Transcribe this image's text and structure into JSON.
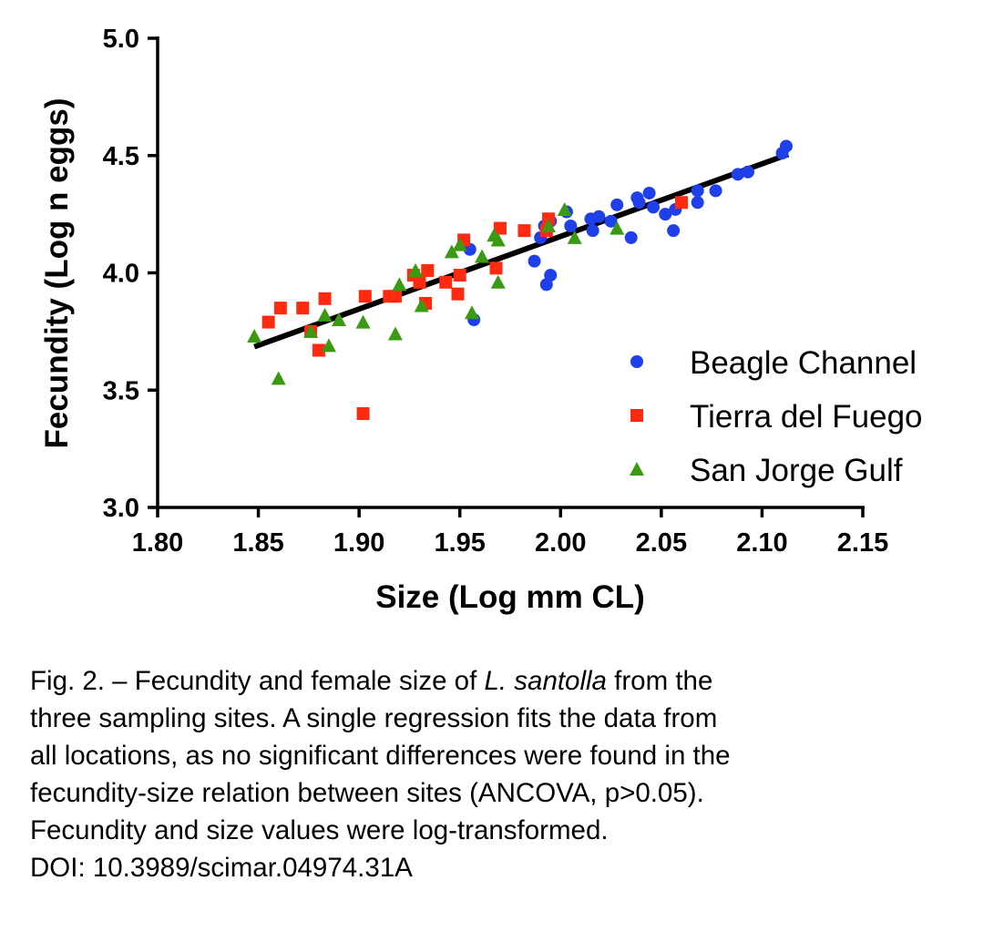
{
  "chart_data": {
    "type": "scatter",
    "xlabel": "Size (Log mm CL)",
    "ylabel": "Fecundity (Log n eggs)",
    "xlim": [
      1.8,
      2.15
    ],
    "ylim": [
      3.0,
      5.0
    ],
    "x_ticks": [
      "1.80",
      "1.85",
      "1.90",
      "1.95",
      "2.00",
      "2.05",
      "2.10",
      "2.15"
    ],
    "y_ticks": [
      "3.0",
      "3.5",
      "4.0",
      "4.5",
      "5.0"
    ],
    "legend_position": "lower-right",
    "regression": {
      "x": [
        1.848,
        2.113
      ],
      "y": [
        3.685,
        4.505
      ],
      "color": "#000000"
    },
    "series": [
      {
        "name": "Beagle Channel",
        "marker": "circle",
        "color": "#1f3fe8",
        "points": [
          [
            1.955,
            4.1
          ],
          [
            1.957,
            3.8
          ],
          [
            1.987,
            4.05
          ],
          [
            1.99,
            4.15
          ],
          [
            1.993,
            3.95
          ],
          [
            1.992,
            4.2
          ],
          [
            1.995,
            3.99
          ],
          [
            1.995,
            4.22
          ],
          [
            2.003,
            4.26
          ],
          [
            2.005,
            4.2
          ],
          [
            2.015,
            4.23
          ],
          [
            2.016,
            4.18
          ],
          [
            2.019,
            4.24
          ],
          [
            2.025,
            4.22
          ],
          [
            2.028,
            4.29
          ],
          [
            2.035,
            4.15
          ],
          [
            2.038,
            4.32
          ],
          [
            2.039,
            4.3
          ],
          [
            2.044,
            4.34
          ],
          [
            2.046,
            4.28
          ],
          [
            2.052,
            4.25
          ],
          [
            2.056,
            4.18
          ],
          [
            2.057,
            4.27
          ],
          [
            2.068,
            4.35
          ],
          [
            2.068,
            4.3
          ],
          [
            2.077,
            4.35
          ],
          [
            2.088,
            4.42
          ],
          [
            2.093,
            4.43
          ],
          [
            2.11,
            4.51
          ],
          [
            2.112,
            4.54
          ]
        ]
      },
      {
        "name": "Tierra del Fuego",
        "marker": "square",
        "color": "#ff2a0f",
        "points": [
          [
            1.855,
            3.79
          ],
          [
            1.861,
            3.85
          ],
          [
            1.872,
            3.85
          ],
          [
            1.876,
            3.75
          ],
          [
            1.88,
            3.67
          ],
          [
            1.883,
            3.89
          ],
          [
            1.902,
            3.4
          ],
          [
            1.903,
            3.9
          ],
          [
            1.915,
            3.9
          ],
          [
            1.918,
            3.9
          ],
          [
            1.927,
            3.99
          ],
          [
            1.93,
            3.96
          ],
          [
            1.933,
            3.87
          ],
          [
            1.934,
            4.01
          ],
          [
            1.943,
            3.96
          ],
          [
            1.949,
            3.91
          ],
          [
            1.95,
            3.99
          ],
          [
            1.952,
            4.14
          ],
          [
            1.968,
            4.02
          ],
          [
            1.97,
            4.19
          ],
          [
            1.982,
            4.18
          ],
          [
            1.993,
            4.18
          ],
          [
            1.994,
            4.23
          ],
          [
            2.06,
            4.3
          ]
        ]
      },
      {
        "name": "San Jorge Gulf",
        "marker": "triangle",
        "color": "#3a9a12",
        "points": [
          [
            1.848,
            3.73
          ],
          [
            1.86,
            3.55
          ],
          [
            1.876,
            3.75
          ],
          [
            1.883,
            3.82
          ],
          [
            1.885,
            3.69
          ],
          [
            1.89,
            3.8
          ],
          [
            1.902,
            3.79
          ],
          [
            1.918,
            3.74
          ],
          [
            1.92,
            3.95
          ],
          [
            1.928,
            4.01
          ],
          [
            1.931,
            3.86
          ],
          [
            1.946,
            4.09
          ],
          [
            1.95,
            4.12
          ],
          [
            1.956,
            3.83
          ],
          [
            1.961,
            4.07
          ],
          [
            1.967,
            4.16
          ],
          [
            1.969,
            4.14
          ],
          [
            1.969,
            3.96
          ],
          [
            1.994,
            4.2
          ],
          [
            2.002,
            4.27
          ],
          [
            2.007,
            4.15
          ],
          [
            2.028,
            4.19
          ]
        ]
      }
    ]
  },
  "caption": {
    "line1_pre": "Fig. 2. – Fecundity and female size of ",
    "line1_italic": "L. santolla",
    "line1_post": " from the",
    "line2": "three sampling sites. A single regression fits the data from",
    "line3": "all locations, as no significant differences were found in the",
    "line4": "fecundity-size relation between sites (ANCOVA, p>0.05).",
    "line5": "Fecundity and size values were log-transformed.",
    "line6": "DOI: 10.3989/scimar.04974.31A"
  }
}
